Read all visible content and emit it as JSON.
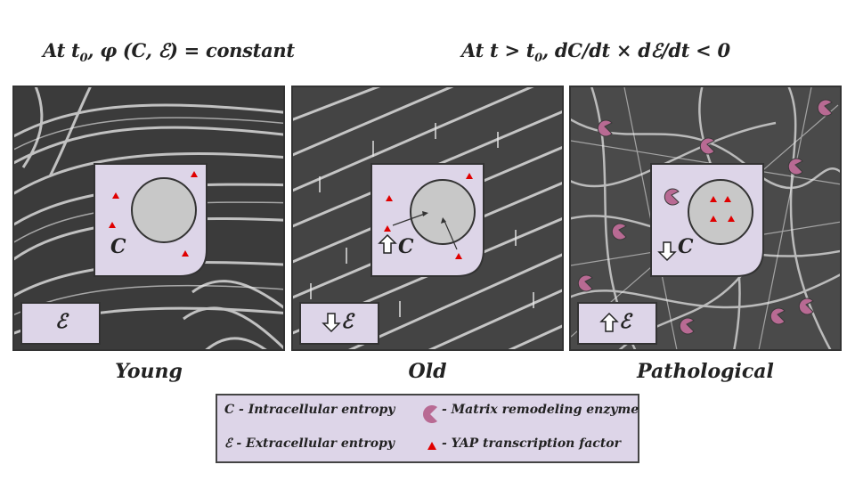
{
  "headings": {
    "left": {
      "pre": "At t",
      "sub": "0",
      "post": ", φ (C, ℰ) = constant"
    },
    "right": {
      "pre": "At t > t",
      "sub": "0",
      "post": ", dC/dt × dℰ/dt < 0"
    }
  },
  "panels": [
    {
      "label": "Young",
      "cell_symbol": "C",
      "matrix_symbol": "ℰ",
      "cell_arrow": "none",
      "matrix_arrow": "none"
    },
    {
      "label": "Old",
      "cell_symbol": "C",
      "matrix_symbol": "ℰ",
      "cell_arrow": "up",
      "matrix_arrow": "down"
    },
    {
      "label": "Pathological",
      "cell_symbol": "C",
      "matrix_symbol": "ℰ",
      "cell_arrow": "down",
      "matrix_arrow": "up"
    }
  ],
  "legend": {
    "c_label": "C - Intracellular entropy",
    "e_label": "ℰ - Extracellular entropy",
    "enzyme_label": "- Matrix remodeling enzyme",
    "yap_label": "- YAP transcription factor"
  },
  "colors": {
    "cell_fill": "#ddd5e8",
    "nucleus_fill": "#c8c8c8",
    "yap_triangle": "#e00000",
    "enzyme": "#b86a93"
  },
  "icons": [
    "up-arrow-icon",
    "down-arrow-icon",
    "enzyme-icon",
    "triangle-icon"
  ]
}
